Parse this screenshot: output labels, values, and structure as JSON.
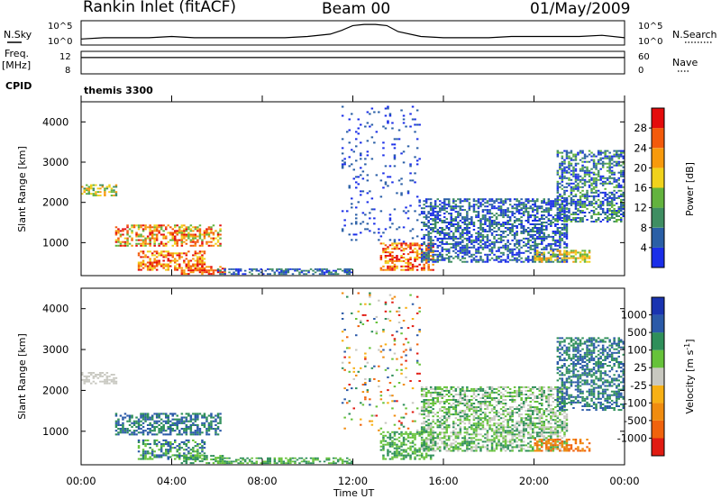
{
  "header": {
    "radar": "Rankin Inlet (fitACF)",
    "beam": "Beam 00",
    "date": "01/May/2009"
  },
  "colors": {
    "power": [
      "#1a2ee8",
      "#2a5fa6",
      "#3f8e62",
      "#63b33e",
      "#f0d21c",
      "#f79a0d",
      "#f35a0b",
      "#e40c0c"
    ],
    "velocity": [
      "#e11b12",
      "#f0630c",
      "#f08c0f",
      "#f7b015",
      "#c8c8c0",
      "#66c23a",
      "#2f8f5a",
      "#2b5aa8",
      "#1a34b0"
    ],
    "trace": "#000000"
  },
  "chart_data": [
    {
      "type": "line",
      "panel": "sky-search",
      "left_label": "N.Sky",
      "right_label": "N.Search",
      "left_ticks": [
        "10^5",
        "10^0"
      ],
      "right_ticks": [
        "10^5",
        "10^0"
      ],
      "x_range_hours": [
        0,
        24
      ],
      "series": [
        {
          "x": [
            0,
            1,
            2,
            3,
            4,
            5,
            6,
            7,
            8,
            9,
            10,
            11,
            11.5,
            12,
            12.5,
            13,
            13.5,
            14,
            15,
            16,
            17,
            18,
            19,
            20,
            21,
            22,
            23,
            24
          ],
          "y": [
            0.25,
            0.3,
            0.3,
            0.3,
            0.35,
            0.3,
            0.3,
            0.3,
            0.3,
            0.3,
            0.35,
            0.45,
            0.6,
            0.8,
            0.85,
            0.85,
            0.8,
            0.55,
            0.35,
            0.3,
            0.3,
            0.3,
            0.35,
            0.35,
            0.35,
            0.35,
            0.4,
            0.3
          ]
        }
      ]
    },
    {
      "type": "line",
      "panel": "freq-nave",
      "left_label_top": "Freq.",
      "left_label_bottom": "[MHz]",
      "right_label": "Nave",
      "left_ticks": [
        "12",
        "8"
      ],
      "right_ticks": [
        "60",
        "0"
      ],
      "x_range_hours": [
        0,
        24
      ],
      "freq_mhz": 10.9
    },
    {
      "type": "text",
      "panel": "cpid",
      "label": "CPID",
      "program": "themis 3300"
    },
    {
      "type": "heatmap",
      "panel": "power",
      "ylabel": "Slant Range [km]",
      "yticks": [
        "1000",
        "2000",
        "3000",
        "4000"
      ],
      "ytick_values": [
        1000,
        2000,
        3000,
        4000
      ],
      "ylim": [
        180,
        4500
      ],
      "x_range_hours": [
        0,
        24
      ],
      "colorbar_label": "Power [dB]",
      "colorbar_ticks": [
        "4",
        "8",
        "12",
        "16",
        "20",
        "24",
        "28"
      ],
      "regions": [
        {
          "t": [
            0.0,
            1.6
          ],
          "r": [
            2150,
            2450
          ],
          "level": [
            2,
            5
          ]
        },
        {
          "t": [
            1.5,
            6.2
          ],
          "r": [
            900,
            1450
          ],
          "level": [
            3,
            7
          ]
        },
        {
          "t": [
            2.5,
            5.5
          ],
          "r": [
            300,
            800
          ],
          "level": [
            4,
            7
          ]
        },
        {
          "t": [
            4.4,
            6.4
          ],
          "r": [
            200,
            420
          ],
          "level": [
            5,
            7
          ]
        },
        {
          "t": [
            6.0,
            12.0
          ],
          "r": [
            200,
            360
          ],
          "level": [
            0,
            2
          ]
        },
        {
          "t": [
            13.2,
            15.6
          ],
          "r": [
            300,
            1000
          ],
          "level": [
            4,
            7
          ]
        },
        {
          "t": [
            15.0,
            21.5
          ],
          "r": [
            500,
            2100
          ],
          "level": [
            0,
            2
          ]
        },
        {
          "t": [
            20.0,
            22.5
          ],
          "r": [
            500,
            820
          ],
          "level": [
            3,
            5
          ]
        },
        {
          "t": [
            21.0,
            24.0
          ],
          "r": [
            1500,
            3300
          ],
          "level": [
            0,
            3
          ]
        },
        {
          "t": [
            11.5,
            15.0
          ],
          "r": [
            1000,
            4400
          ],
          "level": [
            0,
            1
          ]
        }
      ]
    },
    {
      "type": "heatmap",
      "panel": "velocity",
      "ylabel": "Slant Range [km]",
      "yticks": [
        "1000",
        "2000",
        "3000",
        "4000"
      ],
      "ytick_values": [
        1000,
        2000,
        3000,
        4000
      ],
      "ylim": [
        180,
        4500
      ],
      "x_range_hours": [
        0,
        24
      ],
      "xticks": [
        "00:00",
        "04:00",
        "08:00",
        "12:00",
        "16:00",
        "20:00",
        "00:00"
      ],
      "xtick_values": [
        0,
        4,
        8,
        12,
        16,
        20,
        24
      ],
      "xlabel": "Time UT",
      "colorbar_label": "Velocity [m s^-1]",
      "colorbar_ticks": [
        "-1000",
        "-500",
        "-100",
        "-25",
        "25",
        "100",
        "500",
        "1000"
      ],
      "regions": [
        {
          "t": [
            0.0,
            1.6
          ],
          "r": [
            2150,
            2450
          ],
          "level": [
            4,
            4
          ]
        },
        {
          "t": [
            1.5,
            6.2
          ],
          "r": [
            900,
            1450
          ],
          "level": [
            6,
            7
          ]
        },
        {
          "t": [
            2.5,
            5.5
          ],
          "r": [
            300,
            800
          ],
          "level": [
            5,
            7
          ]
        },
        {
          "t": [
            4.4,
            6.4
          ],
          "r": [
            200,
            420
          ],
          "level": [
            5,
            6
          ]
        },
        {
          "t": [
            6.0,
            12.0
          ],
          "r": [
            200,
            360
          ],
          "level": [
            5,
            6
          ]
        },
        {
          "t": [
            13.2,
            15.6
          ],
          "r": [
            300,
            1000
          ],
          "level": [
            5,
            6
          ]
        },
        {
          "t": [
            15.0,
            21.5
          ],
          "r": [
            500,
            2100
          ],
          "level": [
            4,
            6
          ]
        },
        {
          "t": [
            20.0,
            22.5
          ],
          "r": [
            500,
            820
          ],
          "level": [
            1,
            2
          ]
        },
        {
          "t": [
            21.0,
            24.0
          ],
          "r": [
            1500,
            3300
          ],
          "level": [
            6,
            7
          ]
        },
        {
          "t": [
            11.5,
            15.0
          ],
          "r": [
            1000,
            4400
          ],
          "level": [
            0,
            7
          ]
        }
      ]
    }
  ]
}
